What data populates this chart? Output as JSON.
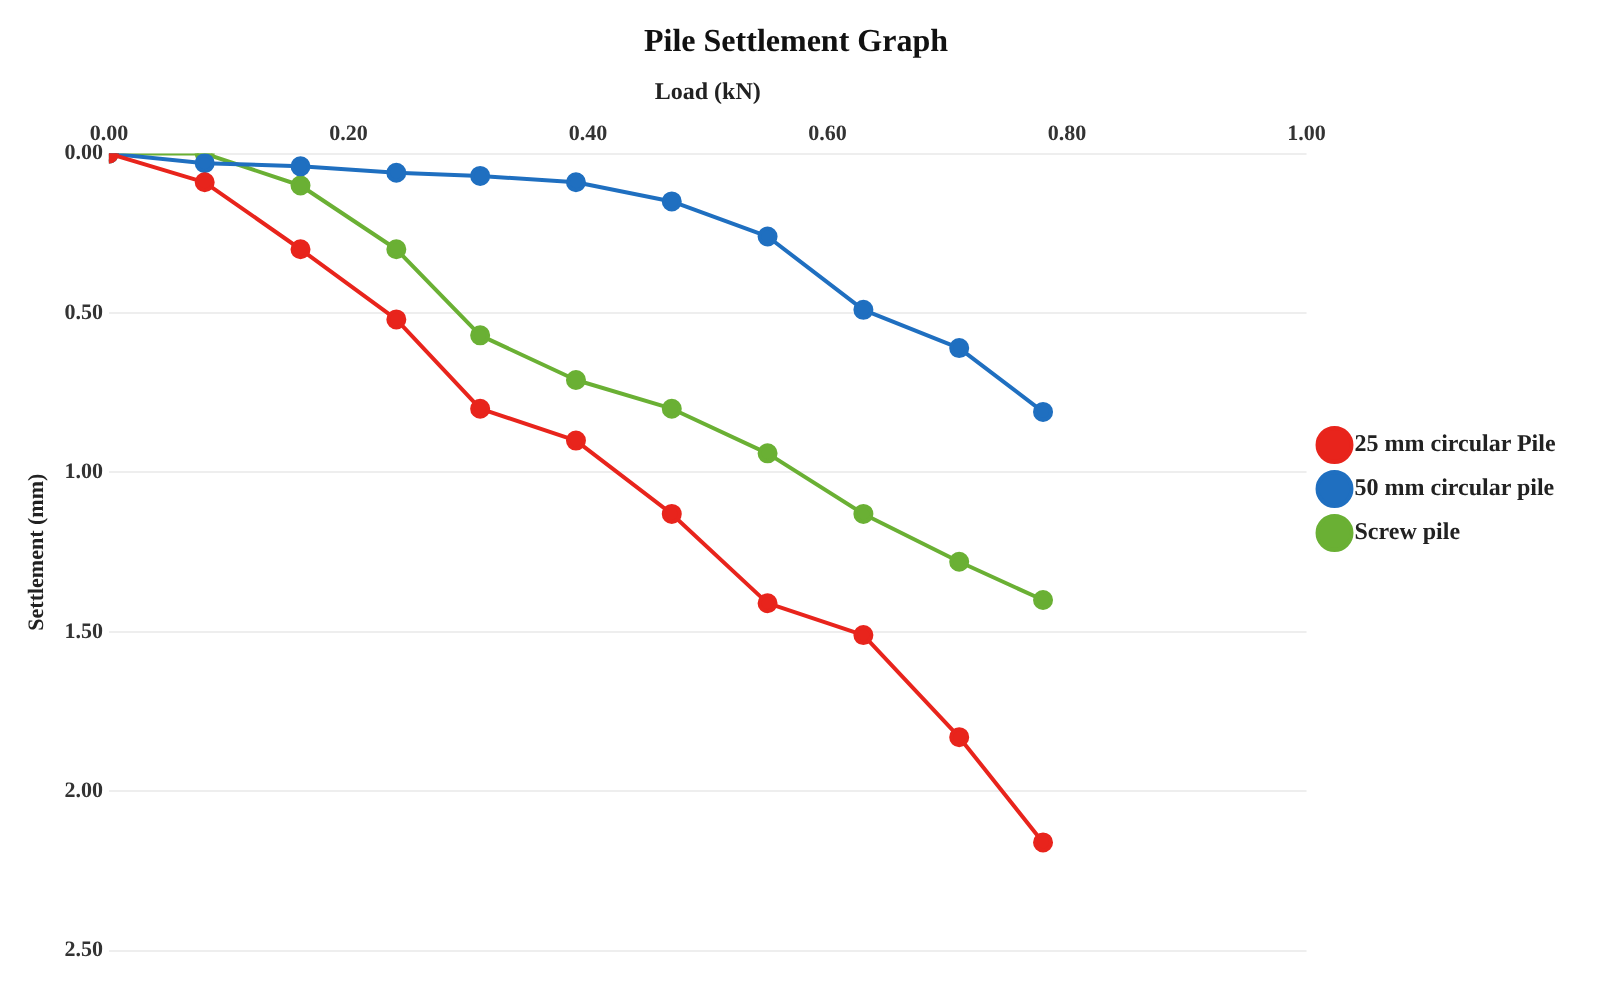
{
  "chart_data": {
    "type": "line",
    "title": "Pile Settlement Graph",
    "xlabel": "Load (kN)",
    "ylabel": "Settlement (mm)",
    "xlim": [
      0,
      1
    ],
    "xticks": [
      {
        "value": 0,
        "label": "0.00"
      },
      {
        "value": 0.2,
        "label": "0.20"
      },
      {
        "value": 0.4,
        "label": "0.40"
      },
      {
        "value": 0.6,
        "label": "0.60"
      },
      {
        "value": 0.8,
        "label": "0.80"
      },
      {
        "value": 1,
        "label": "1.00"
      }
    ],
    "ylim": [
      2.5,
      0
    ],
    "yticks": [
      {
        "value": 0,
        "label": "0.00"
      },
      {
        "value": 0.5,
        "label": "0.50"
      },
      {
        "value": 1,
        "label": "1.00"
      },
      {
        "value": 1.5,
        "label": "1.50"
      },
      {
        "value": 2,
        "label": "2.00"
      },
      {
        "value": 2.5,
        "label": "2.50"
      }
    ],
    "x": [
      0,
      0.08,
      0.16,
      0.24,
      0.31,
      0.39,
      0.47,
      0.55,
      0.63,
      0.71,
      0.78
    ],
    "series": [
      {
        "name": "25 mm circular Pile",
        "color": "#e8241c",
        "values": [
          0,
          0.09,
          0.3,
          0.52,
          0.8,
          0.9,
          1.13,
          1.41,
          1.51,
          1.83,
          2.16
        ]
      },
      {
        "name": "50 mm circular pile",
        "color": "#1f6fc0",
        "values": [
          0,
          0.03,
          0.04,
          0.06,
          0.07,
          0.09,
          0.15,
          0.26,
          0.49,
          0.61,
          0.81
        ]
      },
      {
        "name": "Screw pile",
        "color": "#6ab034",
        "values": [
          0,
          0,
          0.1,
          0.3,
          0.57,
          0.71,
          0.8,
          0.94,
          1.13,
          1.28,
          1.4
        ]
      }
    ],
    "grid": "y",
    "legend": "right",
    "marker": "circle",
    "line_style": "solid"
  }
}
